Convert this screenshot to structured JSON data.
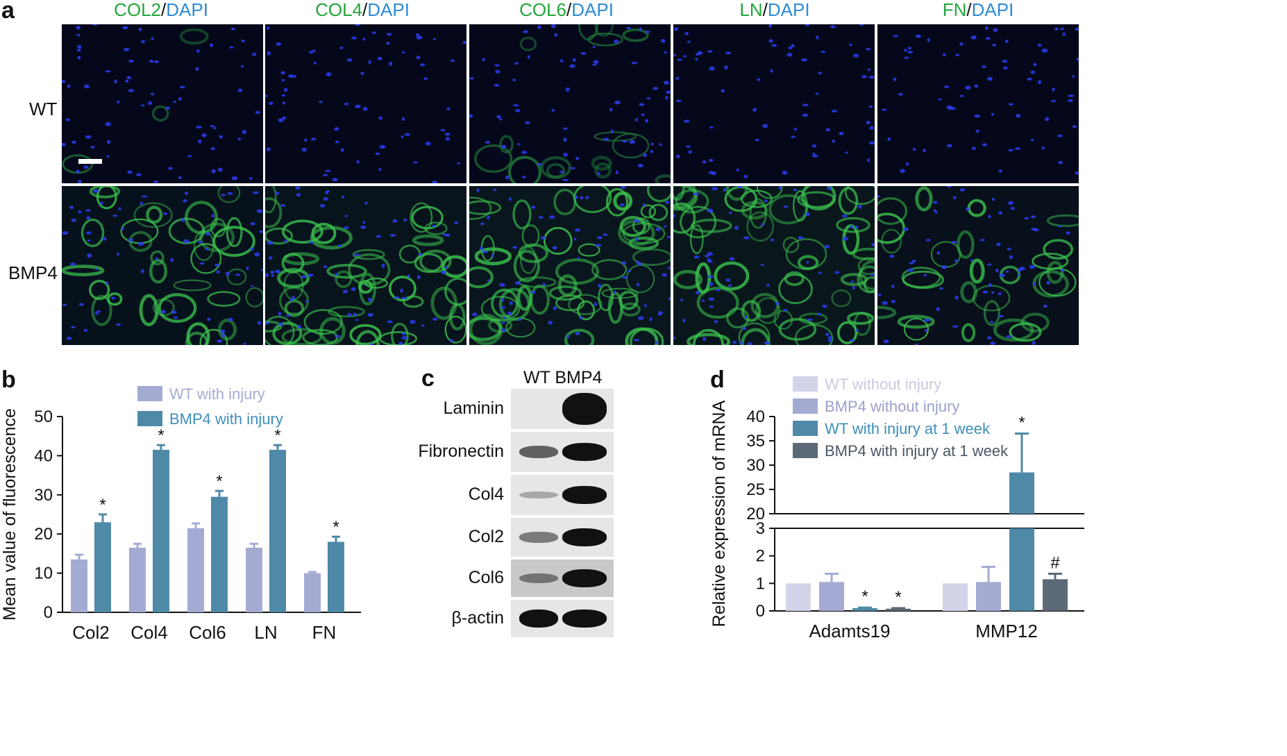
{
  "panel_a": {
    "letter": "a",
    "columns": [
      {
        "marker": "COL2",
        "sep": "/",
        "dapi": "DAPI"
      },
      {
        "marker": "COL4",
        "sep": "/",
        "dapi": "DAPI"
      },
      {
        "marker": "COL6",
        "sep": "/",
        "dapi": "DAPI"
      },
      {
        "marker": "LN",
        "sep": "/",
        "dapi": "DAPI"
      },
      {
        "marker": "FN",
        "sep": "/",
        "dapi": "DAPI"
      }
    ],
    "rows": [
      "WT",
      "BMP4"
    ],
    "colors": {
      "marker": "#22a63a",
      "dapi": "#2e8bd6"
    }
  },
  "panel_c": {
    "letter": "c",
    "header": "WT BMP4",
    "blots": [
      {
        "label": "Laminin",
        "wt": 0.0,
        "bmp4": 1.0
      },
      {
        "label": "Fibronectin",
        "wt": 0.5,
        "bmp4": 1.0
      },
      {
        "label": "Col4",
        "wt": 0.05,
        "bmp4": 1.0
      },
      {
        "label": "Col2",
        "wt": 0.35,
        "bmp4": 1.0
      },
      {
        "label": "Col6",
        "wt": 0.3,
        "bmp4": 1.0
      },
      {
        "label": "β-actin",
        "wt": 1.0,
        "bmp4": 1.0
      }
    ]
  },
  "chart_data": [
    {
      "panel": "b",
      "type": "bar",
      "categories": [
        "Col2",
        "Col4",
        "Col6",
        "LN",
        "FN"
      ],
      "series": [
        {
          "name": "WT with injury",
          "values": [
            13.5,
            16.5,
            21.5,
            16.5,
            10
          ],
          "errors": [
            1.2,
            1.0,
            1.2,
            1.0,
            0.3
          ],
          "color": "#a4abd3"
        },
        {
          "name": "BMP4 with injury",
          "values": [
            23,
            41.5,
            29.5,
            41.5,
            18
          ],
          "errors": [
            2.0,
            1.2,
            1.5,
            1.2,
            1.3
          ],
          "color": "#4e8aa7"
        }
      ],
      "significance": [
        "*",
        "*",
        "*",
        "*",
        "*"
      ],
      "ylabel": "Mean value of fluorescence",
      "ylim": [
        0,
        50
      ],
      "yticks": [
        "0",
        "10",
        "20",
        "30",
        "40",
        "50"
      ],
      "legend_placement": "top-center",
      "legend_text_colors": [
        "#a4abd3",
        "#3f8fb8"
      ]
    },
    {
      "panel": "d",
      "type": "bar",
      "categories": [
        "Adamts19",
        "MMP12"
      ],
      "series": [
        {
          "name": "WT without injury",
          "values": [
            1.0,
            1.0
          ],
          "errors": [
            0,
            0
          ],
          "color": "#d2d4e8"
        },
        {
          "name": "BMP4 without injury",
          "values": [
            1.05,
            1.05
          ],
          "errors": [
            0.3,
            0.55
          ],
          "color": "#a4abd3"
        },
        {
          "name": "WT with injury at 1 week",
          "values": [
            0.1,
            28.5
          ],
          "errors": [
            0.02,
            8.0
          ],
          "color": "#4e8aa7"
        },
        {
          "name": "BMP4 with injury at 1 week",
          "values": [
            0.08,
            1.15
          ],
          "errors": [
            0.02,
            0.2
          ],
          "color": "#5c6a77"
        }
      ],
      "significance": [
        [
          "",
          "",
          "*",
          "*"
        ],
        [
          "",
          "",
          "*",
          "#"
        ]
      ],
      "ylabel": "Relative expression of mRNA",
      "axis_break": {
        "lower": [
          0,
          3
        ],
        "upper": [
          20,
          40
        ]
      },
      "yticks_lower": [
        "0",
        "1",
        "2",
        "3"
      ],
      "yticks_upper": [
        "20",
        "25",
        "30",
        "35",
        "40"
      ],
      "legend_placement": "top-center",
      "legend_text_colors": [
        "#c8cae0",
        "#9aa1cb",
        "#3f8fb8",
        "#4a5763"
      ]
    }
  ],
  "panel_letters": {
    "b": "b",
    "d": "d"
  }
}
